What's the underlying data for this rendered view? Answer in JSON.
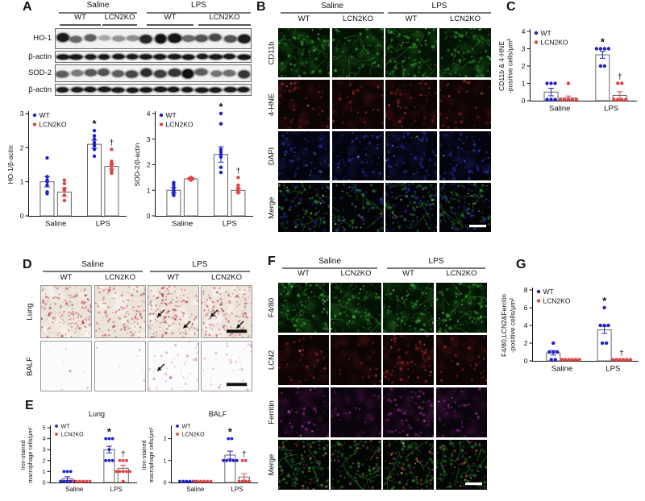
{
  "panels": {
    "A": "A",
    "B": "B",
    "C": "C",
    "D": "D",
    "E": "E",
    "F": "F",
    "G": "G"
  },
  "colors": {
    "wt": "#2020cc",
    "ko": "#e04343",
    "axis": "#111111",
    "bar_fill": "#ffffff",
    "bar_stroke": "#555555",
    "sig": "#111111"
  },
  "legend": {
    "wt_label": "WT",
    "ko_label": "LCN2KO"
  },
  "western_blot": {
    "groups": [
      "Saline",
      "LPS"
    ],
    "lane_labels": [
      "WT",
      "LCN2KO",
      "WT",
      "LCN2KO"
    ],
    "rows": [
      {
        "label": "HO-1",
        "bands": [
          0.85,
          0.45,
          0.5,
          0.22,
          0.28,
          0.3,
          0.8,
          0.95,
          0.92,
          0.45,
          0.55,
          0.6,
          0.55,
          0.85
        ]
      },
      {
        "label": "β-actin",
        "bands": [
          0.9,
          0.9,
          0.88,
          0.9,
          0.9,
          0.88,
          0.9,
          0.92,
          0.9,
          0.9,
          0.88,
          0.9,
          0.9,
          0.92
        ]
      },
      {
        "label": "SOD-2",
        "bands": [
          0.5,
          0.38,
          0.52,
          0.55,
          0.5,
          0.6,
          0.75,
          0.65,
          0.7,
          0.95,
          0.5,
          0.4,
          0.42,
          0.7
        ]
      },
      {
        "label": "β-actin",
        "bands": [
          0.9,
          0.88,
          0.9,
          0.9,
          0.88,
          0.9,
          0.9,
          0.9,
          0.92,
          0.9,
          0.88,
          0.9,
          0.88,
          0.9
        ]
      }
    ]
  },
  "chart_data": [
    {
      "id": "ho1",
      "type": "bar-scatter",
      "title": "",
      "ylabel_lines": [
        "HO-1/β-actin"
      ],
      "ymax": 3,
      "yticks": [
        0,
        1,
        2,
        3
      ],
      "categories": [
        "Saline",
        "LPS"
      ],
      "series": [
        {
          "name": "WT",
          "color": "#2020cc",
          "bars": [
            1.0,
            2.1
          ],
          "errors": [
            0.15,
            0.12
          ],
          "points": [
            [
              1.7,
              1.15,
              1.05,
              1.0,
              0.9,
              0.7,
              0.65
            ],
            [
              2.5,
              2.35,
              2.25,
              2.15,
              2.1,
              2.05,
              1.95,
              1.75
            ]
          ],
          "sig": [
            null,
            "*"
          ]
        },
        {
          "name": "LCN2KO",
          "color": "#e04343",
          "bars": [
            0.7,
            1.45
          ],
          "errors": [
            0.12,
            0.07
          ],
          "points": [
            [
              1.05,
              0.95,
              0.8,
              0.75,
              0.6,
              0.45
            ],
            [
              1.95,
              1.6,
              1.55,
              1.5,
              1.45,
              1.35,
              1.3,
              1.25
            ]
          ],
          "sig": [
            null,
            "†"
          ]
        }
      ]
    },
    {
      "id": "sod2",
      "type": "bar-scatter",
      "title": "",
      "ylabel_lines": [
        "SOD-2/β-actin"
      ],
      "ymax": 4,
      "yticks": [
        0,
        1,
        2,
        3,
        4
      ],
      "categories": [
        "Saline",
        "LPS"
      ],
      "series": [
        {
          "name": "WT",
          "color": "#2020cc",
          "bars": [
            1.0,
            2.4
          ],
          "errors": [
            0.1,
            0.3
          ],
          "points": [
            [
              1.3,
              1.2,
              1.1,
              1.0,
              0.95,
              0.85,
              0.8
            ],
            [
              4.0,
              3.6,
              2.6,
              2.5,
              2.4,
              2.3,
              1.9,
              1.7
            ]
          ],
          "sig": [
            null,
            "*"
          ]
        },
        {
          "name": "LCN2KO",
          "color": "#e04343",
          "bars": [
            1.45,
            1.0
          ],
          "errors": [
            0.05,
            0.08
          ],
          "points": [
            [
              1.5,
              1.45,
              1.45,
              1.4
            ],
            [
              1.5,
              1.2,
              1.1,
              1.05,
              1.0,
              0.95,
              0.9
            ]
          ],
          "sig": [
            null,
            "†"
          ]
        }
      ]
    },
    {
      "id": "cd11b",
      "type": "bar-scatter",
      "title": "",
      "ylabel_lines": [
        "CD11b & 4-HNE",
        "-positive cells/μm²"
      ],
      "ymax": 4,
      "yticks": [
        0,
        1,
        2,
        3,
        4
      ],
      "categories": [
        "Saline",
        "LPS"
      ],
      "series": [
        {
          "name": "WT",
          "color": "#2020cc",
          "bars": [
            0.5,
            2.65
          ],
          "errors": [
            0.22,
            0.2
          ],
          "points": [
            [
              1,
              1,
              1,
              0,
              0,
              0
            ],
            [
              3,
              3,
              3,
              3,
              2,
              2
            ]
          ],
          "sig": [
            null,
            "*"
          ]
        },
        {
          "name": "LCN2KO",
          "color": "#e04343",
          "bars": [
            0.15,
            0.3
          ],
          "errors": [
            0.12,
            0.22
          ],
          "points": [
            [
              1,
              0,
              0,
              0,
              0,
              0
            ],
            [
              1,
              1,
              0,
              0,
              0,
              0
            ]
          ],
          "sig": [
            null,
            "†"
          ]
        }
      ]
    },
    {
      "id": "lung",
      "type": "bar-scatter",
      "title": "Lung",
      "ylabel_lines": [
        "Iron-stained",
        "macrophage cells/μm²"
      ],
      "ymax": 5,
      "yticks": [
        0,
        1,
        2,
        3,
        4,
        5
      ],
      "categories": [
        "Saline",
        "LPS"
      ],
      "series": [
        {
          "name": "WT",
          "color": "#2020cc",
          "bars": [
            0.35,
            3.0
          ],
          "errors": [
            0.18,
            0.3
          ],
          "points": [
            [
              1,
              1,
              1,
              0,
              0,
              0,
              0,
              0
            ],
            [
              4,
              4,
              4,
              3,
              2,
              2,
              2
            ]
          ],
          "sig": [
            null,
            "*"
          ]
        },
        {
          "name": "LCN2KO",
          "color": "#e04343",
          "bars": [
            0.03,
            1.3
          ],
          "errors": [
            0.02,
            0.28
          ],
          "points": [
            [
              0,
              0,
              0,
              0,
              0,
              0
            ],
            [
              2,
              2,
              2,
              1,
              1,
              1,
              1,
              1,
              0
            ]
          ],
          "sig": [
            null,
            "†"
          ]
        }
      ]
    },
    {
      "id": "balf",
      "type": "bar-scatter",
      "title": "BALF",
      "ylabel_lines": [
        "Iron-stained",
        "macrophage cells/μm²"
      ],
      "ymax": 2.5,
      "yticks": [
        0,
        1,
        2
      ],
      "categories": [
        "Saline",
        "LPS"
      ],
      "series": [
        {
          "name": "WT",
          "color": "#2020cc",
          "bars": [
            0.03,
            1.25
          ],
          "errors": [
            0.02,
            0.18
          ],
          "points": [
            [
              0,
              0,
              0,
              0,
              0,
              0
            ],
            [
              2,
              2,
              1,
              1,
              1,
              1,
              1
            ]
          ],
          "sig": [
            null,
            "*"
          ]
        },
        {
          "name": "LCN2KO",
          "color": "#e04343",
          "bars": [
            0.03,
            0.25
          ],
          "errors": [
            0.02,
            0.15
          ],
          "points": [
            [
              0,
              0,
              0,
              0,
              0,
              0
            ],
            [
              1,
              1,
              0,
              0,
              0,
              0
            ]
          ],
          "sig": [
            null,
            "†"
          ]
        }
      ]
    },
    {
      "id": "f480",
      "type": "bar-scatter",
      "title": "",
      "ylabel_lines": [
        "F4/80,LCN2&Ferritin",
        "-positive cells/μm²"
      ],
      "ymax": 8,
      "yticks": [
        0,
        2,
        4,
        6,
        8
      ],
      "categories": [
        "Saline",
        "LPS"
      ],
      "series": [
        {
          "name": "WT",
          "color": "#2020cc",
          "bars": [
            0.9,
            3.5
          ],
          "errors": [
            0.25,
            0.4
          ],
          "points": [
            [
              2,
              1,
              1,
              1,
              0,
              0
            ],
            [
              6,
              4,
              4,
              4,
              2,
              2
            ]
          ],
          "sig": [
            null,
            "*"
          ]
        },
        {
          "name": "LCN2KO",
          "color": "#e04343",
          "bars": [
            0.05,
            0.05
          ],
          "errors": [
            0.02,
            0.02
          ],
          "points": [
            [
              0,
              0,
              0,
              0,
              0,
              0
            ],
            [
              0,
              0,
              0,
              0,
              0,
              0
            ]
          ],
          "sig": [
            null,
            "†"
          ]
        }
      ]
    }
  ],
  "panelB": {
    "groups": [
      "Saline",
      "LPS"
    ],
    "columns": [
      "WT",
      "LCN2KO",
      "WT",
      "LCN2KO"
    ],
    "rows": [
      {
        "label": "CD11b",
        "channel": "green",
        "intensity": [
          0.7,
          0.55,
          1.0,
          0.8
        ]
      },
      {
        "label": "4-HNE",
        "channel": "red",
        "intensity": [
          0.5,
          0.4,
          0.65,
          0.5
        ]
      },
      {
        "label": "DAPI",
        "channel": "blue",
        "intensity": [
          0.65,
          0.65,
          0.75,
          0.75
        ]
      },
      {
        "label": "Merge",
        "channel": "mergeB",
        "intensity": [
          0.85,
          0.75,
          1.0,
          0.9
        ],
        "scalebar_col": 3,
        "scalebar_color": "#ffffff"
      }
    ]
  },
  "panelD": {
    "groups": [
      "Saline",
      "LPS"
    ],
    "columns": [
      "WT",
      "LCN2KO",
      "WT",
      "LCN2KO"
    ],
    "rows": [
      {
        "label": "Lung",
        "channel": "lung",
        "intensity": [
          0.9,
          0.85,
          0.95,
          0.9
        ],
        "arrows": [
          false,
          false,
          true,
          true
        ],
        "scalebar_col": 3,
        "scalebar_color": "#111111"
      },
      {
        "label": "BALF",
        "channel": "balf",
        "intensity": [
          0.08,
          0.06,
          0.85,
          0.5
        ],
        "arrows": [
          false,
          false,
          true,
          false
        ],
        "scalebar_col": 3,
        "scalebar_color": "#111111"
      }
    ]
  },
  "panelF": {
    "groups": [
      "Saline",
      "LPS"
    ],
    "columns": [
      "WT",
      "LCN2KO",
      "WT",
      "LCN2KO"
    ],
    "rows": [
      {
        "label": "F4/80",
        "channel": "green",
        "intensity": [
          0.85,
          0.8,
          0.9,
          0.85
        ]
      },
      {
        "label": "LCN2",
        "channel": "red",
        "intensity": [
          0.5,
          0.3,
          1.0,
          0.4
        ]
      },
      {
        "label": "Ferritin",
        "channel": "magenta",
        "intensity": [
          0.55,
          0.35,
          0.9,
          0.65
        ]
      },
      {
        "label": "Merge",
        "channel": "mergeF",
        "intensity": [
          0.9,
          0.8,
          1.0,
          0.9
        ],
        "scalebar_col": 3,
        "scalebar_color": "#ffffff"
      }
    ]
  }
}
